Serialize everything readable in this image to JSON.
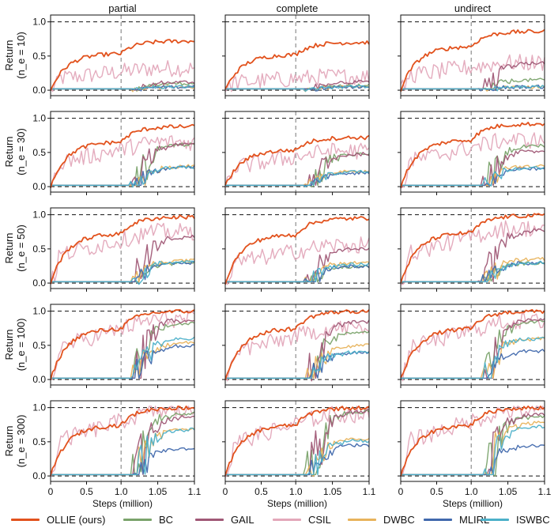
{
  "chart_data": {
    "type": "line",
    "column_titles": [
      "partial",
      "complete",
      "undirect"
    ],
    "row_labels": [
      "(n_e = 10)",
      "(n_e = 30)",
      "(n_e = 50)",
      "(n_e = 100)",
      "(n_e = 300)"
    ],
    "ylabel_prefix": "Return",
    "xlabel": "Steps (million)",
    "xticks": [
      "0",
      "0.5",
      "1.0",
      "1.05",
      "1.1"
    ],
    "yticks": [
      "0.0",
      "0.5",
      "1.0"
    ],
    "ylim": [
      -0.08,
      1.1
    ],
    "reference_lines": {
      "y": [
        0.0,
        1.0
      ],
      "x_switch": "1.0"
    },
    "series": [
      {
        "name": "OLLIE (ours)",
        "color": "#e2521d"
      },
      {
        "name": "BC",
        "color": "#7aa36b"
      },
      {
        "name": "GAIL",
        "color": "#a05876"
      },
      {
        "name": "CSIL",
        "color": "#e3a8ba"
      },
      {
        "name": "DWBC",
        "color": "#e8b35c"
      },
      {
        "name": "MLIRL",
        "color": "#4169ad"
      },
      {
        "name": "ISWBC",
        "color": "#4cb0c9"
      }
    ],
    "approx_final_values": [
      {
        "OLLIE (ours)": 0.72,
        "BC": 0.1,
        "GAIL": 0.12,
        "CSIL": 0.32,
        "DWBC": 0.05,
        "MLIRL": 0.05,
        "ISWBC": 0.05
      },
      {
        "OLLIE (ours)": 0.7,
        "BC": 0.07,
        "GAIL": 0.12,
        "CSIL": 0.2,
        "DWBC": 0.05,
        "MLIRL": 0.05,
        "ISWBC": 0.05
      },
      {
        "OLLIE (ours)": 0.86,
        "BC": 0.15,
        "GAIL": 0.4,
        "CSIL": 0.4,
        "DWBC": 0.05,
        "MLIRL": 0.05,
        "ISWBC": 0.05
      },
      {
        "OLLIE (ours)": 0.88,
        "BC": 0.62,
        "GAIL": 0.62,
        "CSIL": 0.65,
        "DWBC": 0.3,
        "MLIRL": 0.28,
        "ISWBC": 0.28
      },
      {
        "OLLIE (ours)": 0.72,
        "BC": 0.48,
        "GAIL": 0.48,
        "CSIL": 0.52,
        "DWBC": 0.22,
        "MLIRL": 0.2,
        "ISWBC": 0.22
      },
      {
        "OLLIE (ours)": 0.92,
        "BC": 0.6,
        "GAIL": 0.52,
        "CSIL": 0.68,
        "DWBC": 0.3,
        "MLIRL": 0.26,
        "ISWBC": 0.28
      },
      {
        "OLLIE (ours)": 0.97,
        "BC": 0.3,
        "GAIL": 0.68,
        "CSIL": 0.75,
        "DWBC": 0.33,
        "MLIRL": 0.3,
        "ISWBC": 0.32
      },
      {
        "OLLIE (ours)": 0.95,
        "BC": 0.25,
        "GAIL": 0.5,
        "CSIL": 0.55,
        "DWBC": 0.3,
        "MLIRL": 0.25,
        "ISWBC": 0.28
      },
      {
        "OLLIE (ours)": 0.99,
        "BC": 0.3,
        "GAIL": 0.78,
        "CSIL": 0.8,
        "DWBC": 0.35,
        "MLIRL": 0.3,
        "ISWBC": 0.3
      },
      {
        "OLLIE (ours)": 1.0,
        "BC": 0.83,
        "GAIL": 0.88,
        "CSIL": 0.88,
        "DWBC": 0.55,
        "MLIRL": 0.5,
        "ISWBC": 0.6
      },
      {
        "OLLIE (ours)": 1.0,
        "BC": 0.7,
        "GAIL": 0.85,
        "CSIL": 0.75,
        "DWBC": 0.5,
        "MLIRL": 0.4,
        "ISWBC": 0.4
      },
      {
        "OLLIE (ours)": 1.0,
        "BC": 0.85,
        "GAIL": 0.88,
        "CSIL": 0.85,
        "DWBC": 0.6,
        "MLIRL": 0.42,
        "ISWBC": 0.6
      },
      {
        "OLLIE (ours)": 1.0,
        "BC": 0.92,
        "GAIL": 0.88,
        "CSIL": 0.95,
        "DWBC": 0.7,
        "MLIRL": 0.4,
        "ISWBC": 0.68
      },
      {
        "OLLIE (ours)": 1.0,
        "BC": 0.95,
        "GAIL": 0.95,
        "CSIL": 0.9,
        "DWBC": 0.55,
        "MLIRL": 0.45,
        "ISWBC": 0.52
      },
      {
        "OLLIE (ours)": 1.0,
        "BC": 0.88,
        "GAIL": 0.9,
        "CSIL": 0.95,
        "DWBC": 0.78,
        "MLIRL": 0.45,
        "ISWBC": 0.72
      }
    ]
  }
}
